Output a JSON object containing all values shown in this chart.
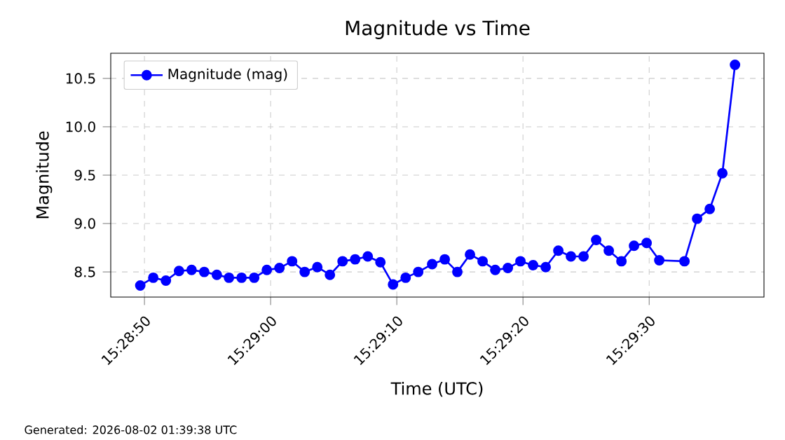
{
  "chart_data": {
    "type": "line",
    "title": "Magnitude vs Time",
    "xlabel": "Time (UTC)",
    "ylabel": "Magnitude",
    "annotations": [
      "Generated: 2026-08-02 01:39:38 UTC"
    ],
    "x": [
      15.480464,
      15.48075,
      15.481028,
      15.481317,
      15.481594,
      15.481872,
      15.48215,
      15.482417,
      15.482694,
      15.482972,
      15.48325,
      15.483528,
      15.483806,
      15.484083,
      15.484361,
      15.484639,
      15.484917,
      15.485194,
      15.485472,
      15.48575,
      15.486028,
      15.486306,
      15.486583,
      15.486889,
      15.487167,
      15.487444,
      15.487722,
      15.488,
      15.488278,
      15.488556,
      15.488833,
      15.489111,
      15.489389,
      15.489667,
      15.489944,
      15.490222,
      15.4905,
      15.490778,
      15.491056,
      15.491333,
      15.491611,
      15.491889,
      15.492444,
      15.492722,
      15.493,
      15.493278,
      15.493556
    ],
    "series": [
      {
        "name": "Magnitude (mag)",
        "color": "#0000ff",
        "values": [
          8.36,
          8.44,
          8.41,
          8.51,
          8.52,
          8.5,
          8.47,
          8.44,
          8.44,
          8.44,
          8.52,
          8.54,
          8.61,
          8.5,
          8.55,
          8.47,
          8.61,
          8.63,
          8.66,
          8.6,
          8.37,
          8.44,
          8.5,
          8.58,
          8.63,
          8.5,
          8.68,
          8.61,
          8.52,
          8.54,
          8.61,
          8.57,
          8.55,
          8.72,
          8.66,
          8.66,
          8.83,
          8.72,
          8.61,
          8.77,
          8.8,
          8.62,
          8.61,
          9.05,
          9.15,
          9.52,
          10.64
        ]
      }
    ],
    "xlim": [
      15.479814,
      15.494194
    ],
    "xticks": [
      {
        "value": 15.480556,
        "label": "15:28:50"
      },
      {
        "value": 15.483333,
        "label": "15:29:00"
      },
      {
        "value": 15.486111,
        "label": "15:29:10"
      },
      {
        "value": 15.488889,
        "label": "15:29:20"
      },
      {
        "value": 15.491667,
        "label": "15:29:30"
      }
    ],
    "ylim": [
      8.24,
      10.76
    ],
    "yticks": [
      8.5,
      {
        "value": 9,
        "label": "9.0"
      },
      9.5,
      {
        "value": 10,
        "label": "10.0"
      },
      10.5
    ],
    "grid": true,
    "legend": "top left",
    "marker": "circle",
    "line_style": "solid"
  }
}
